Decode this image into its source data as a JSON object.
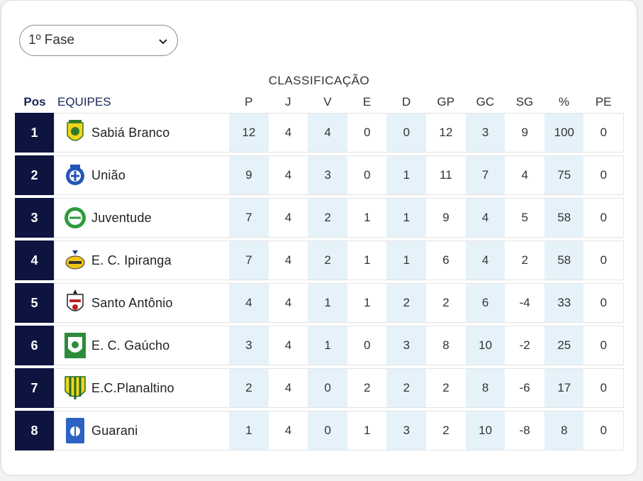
{
  "phase_select": {
    "value": "1º Fase"
  },
  "title": "CLASSIFICAÇÃO",
  "headers": {
    "pos": "Pos",
    "team": "EQUIPES",
    "stats": [
      "P",
      "J",
      "V",
      "E",
      "D",
      "GP",
      "GC",
      "SG",
      "%",
      "PE"
    ]
  },
  "rows": [
    {
      "pos": "1",
      "team": "Sabiá Branco",
      "stats": [
        "12",
        "4",
        "4",
        "0",
        "0",
        "12",
        "3",
        "9",
        "100",
        "0"
      ],
      "logo": "yellow-shield-icon"
    },
    {
      "pos": "2",
      "team": "União",
      "stats": [
        "9",
        "4",
        "3",
        "0",
        "1",
        "11",
        "7",
        "4",
        "75",
        "0"
      ],
      "logo": "blue-crest-icon"
    },
    {
      "pos": "3",
      "team": "Juventude",
      "stats": [
        "7",
        "4",
        "2",
        "1",
        "1",
        "9",
        "4",
        "5",
        "58",
        "0"
      ],
      "logo": "green-ball-crest-icon"
    },
    {
      "pos": "4",
      "team": "E. C. Ipiranga",
      "stats": [
        "7",
        "4",
        "2",
        "1",
        "1",
        "6",
        "4",
        "2",
        "58",
        "0"
      ],
      "logo": "yellow-oval-crest-icon"
    },
    {
      "pos": "5",
      "team": "Santo Antônio",
      "stats": [
        "4",
        "4",
        "1",
        "1",
        "2",
        "2",
        "6",
        "-4",
        "33",
        "0"
      ],
      "logo": "red-white-shield-icon"
    },
    {
      "pos": "6",
      "team": "E. C. Gaúcho",
      "stats": [
        "3",
        "4",
        "1",
        "0",
        "3",
        "8",
        "10",
        "-2",
        "25",
        "0"
      ],
      "logo": "green-shield-icon"
    },
    {
      "pos": "7",
      "team": "E.C.Planaltino",
      "stats": [
        "2",
        "4",
        "0",
        "2",
        "2",
        "2",
        "8",
        "-6",
        "17",
        "0"
      ],
      "logo": "yellow-green-striped-shield-icon"
    },
    {
      "pos": "8",
      "team": "Guarani",
      "stats": [
        "1",
        "4",
        "0",
        "1",
        "3",
        "2",
        "10",
        "-8",
        "8",
        "0"
      ],
      "logo": "blue-emblem-icon"
    }
  ]
}
